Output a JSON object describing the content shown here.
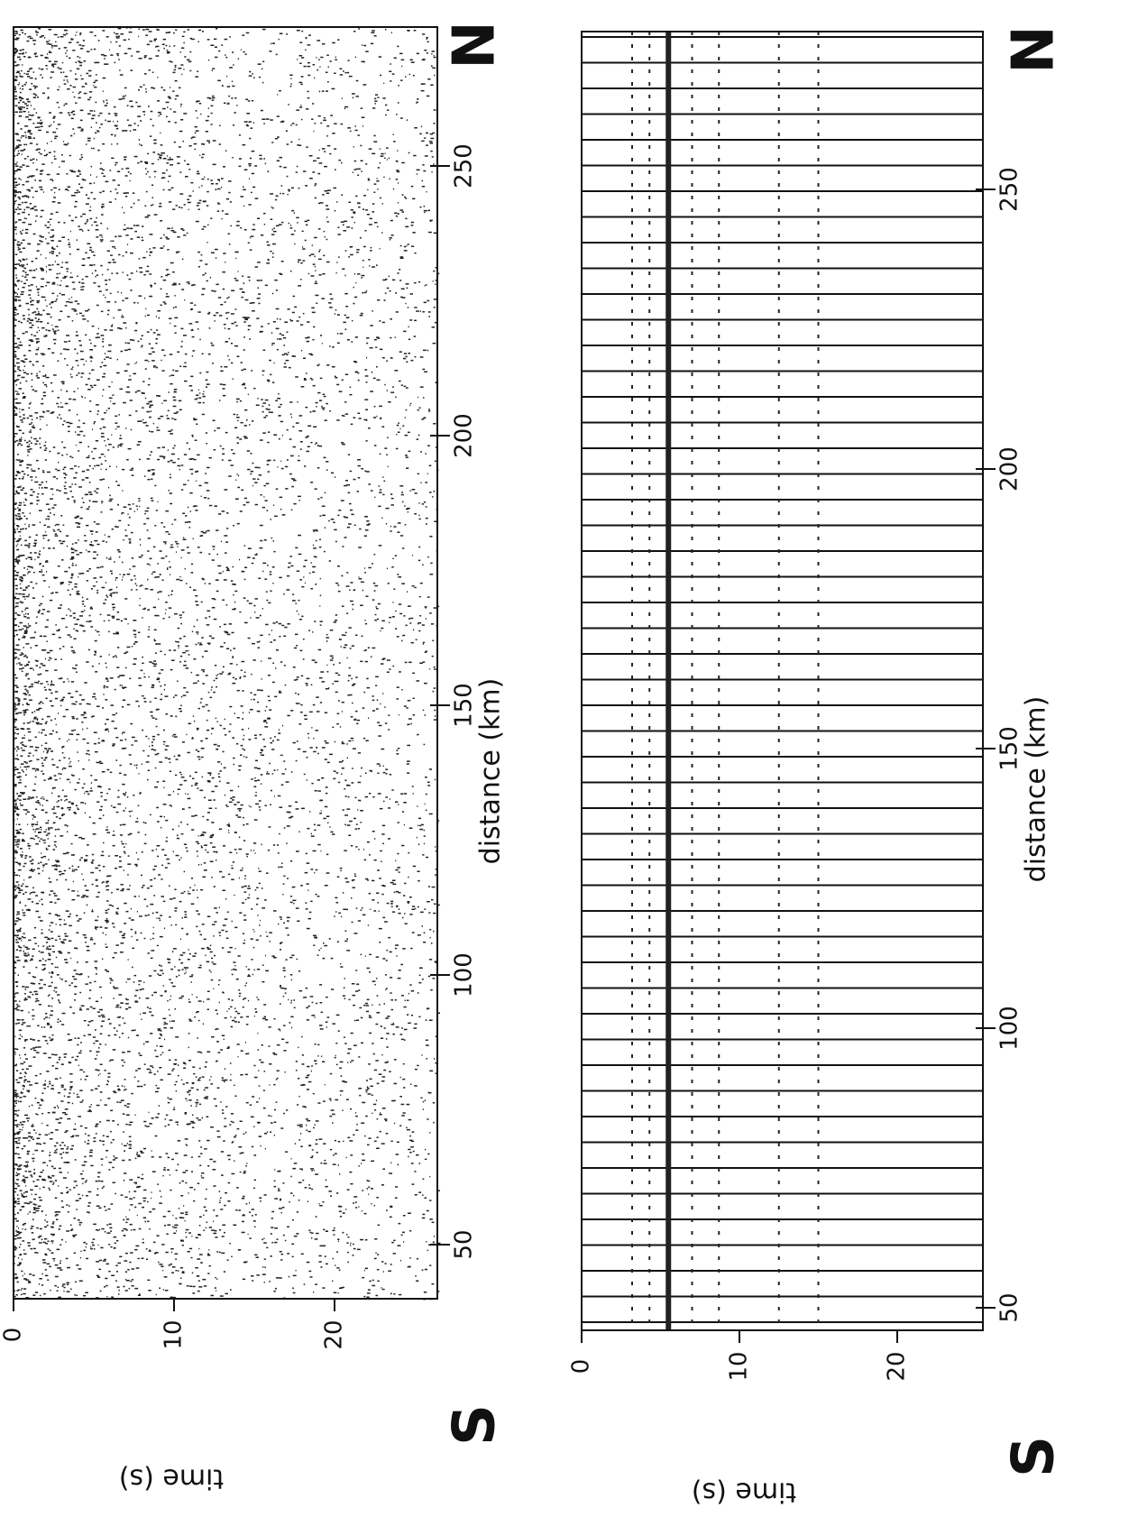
{
  "panels": [
    {
      "time_axis": {
        "label": "time (s)",
        "ticks": [
          0,
          10,
          20
        ]
      },
      "distance_axis": {
        "label": "distance (km)",
        "ticks": [
          50,
          100,
          150,
          200,
          250
        ]
      },
      "south": "S",
      "north": "N"
    },
    {
      "time_axis": {
        "label": "time (s)",
        "ticks": [
          0,
          10,
          20
        ]
      },
      "distance_axis": {
        "label": "distance (km)",
        "ticks": [
          50,
          100,
          150,
          200,
          250
        ]
      },
      "south": "S",
      "north": "N"
    }
  ]
}
